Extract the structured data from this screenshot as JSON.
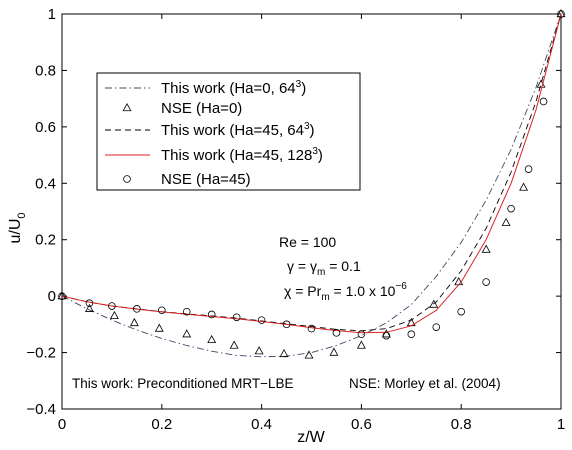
{
  "chart_data": {
    "type": "line",
    "xlabel": "z/W",
    "ylabel": "u/U",
    "ylabel_sub": "0",
    "xlim": [
      0,
      1
    ],
    "ylim": [
      -0.4,
      1
    ],
    "xticks": [
      0,
      0.2,
      0.4,
      0.6,
      0.8,
      1
    ],
    "yticks": [
      -0.4,
      -0.2,
      0,
      0.2,
      0.4,
      0.6,
      0.8,
      1
    ],
    "xtick_labels": [
      "0",
      "0.2",
      "0.4",
      "0.6",
      "0.8",
      "1"
    ],
    "ytick_labels": [
      "−0.4",
      "−0.2",
      "0",
      "0.2",
      "0.4",
      "0.6",
      "0.8",
      "1"
    ],
    "grid": false,
    "legend_position": "upper-left",
    "series": [
      {
        "name": "This work (Ha=0, 64",
        "name_sup": "3",
        "name_end": ")",
        "style": "dash-dot",
        "color": "#444466",
        "x": [
          0,
          0.05,
          0.1,
          0.15,
          0.2,
          0.25,
          0.3,
          0.35,
          0.4,
          0.45,
          0.5,
          0.55,
          0.6,
          0.65,
          0.7,
          0.75,
          0.8,
          0.85,
          0.9,
          0.95,
          1
        ],
        "y": [
          0,
          -0.045,
          -0.085,
          -0.12,
          -0.15,
          -0.175,
          -0.195,
          -0.21,
          -0.215,
          -0.213,
          -0.2,
          -0.175,
          -0.14,
          -0.095,
          -0.03,
          0.07,
          0.19,
          0.34,
          0.52,
          0.74,
          1
        ]
      },
      {
        "name": "NSE (Ha=0)",
        "style": "triangle",
        "color": "#000000",
        "x": [
          0,
          0.055,
          0.105,
          0.145,
          0.195,
          0.25,
          0.3,
          0.345,
          0.395,
          0.445,
          0.495,
          0.545,
          0.6,
          0.65,
          0.7,
          0.745,
          0.795,
          0.85,
          0.89,
          0.925,
          0.96,
          1
        ],
        "y": [
          0,
          -0.045,
          -0.07,
          -0.095,
          -0.115,
          -0.135,
          -0.155,
          -0.175,
          -0.195,
          -0.205,
          -0.21,
          -0.2,
          -0.175,
          -0.135,
          -0.095,
          -0.03,
          0.05,
          0.165,
          0.26,
          0.385,
          0.75,
          1
        ]
      },
      {
        "name": "This work (Ha=45, 64",
        "name_sup": "3",
        "name_end": ")",
        "style": "dashed",
        "color": "#000000",
        "x": [
          0,
          0.05,
          0.1,
          0.15,
          0.2,
          0.25,
          0.3,
          0.35,
          0.4,
          0.45,
          0.5,
          0.55,
          0.6,
          0.65,
          0.7,
          0.75,
          0.8,
          0.85,
          0.9,
          0.95,
          1
        ],
        "y": [
          0,
          -0.02,
          -0.035,
          -0.045,
          -0.055,
          -0.063,
          -0.07,
          -0.078,
          -0.088,
          -0.098,
          -0.108,
          -0.118,
          -0.123,
          -0.115,
          -0.085,
          -0.02,
          0.09,
          0.24,
          0.44,
          0.69,
          1
        ]
      },
      {
        "name": "This work (Ha=45, 128",
        "name_sup": "3",
        "name_end": ")",
        "style": "solid",
        "color": "#dd2222",
        "x": [
          0,
          0.05,
          0.1,
          0.15,
          0.2,
          0.25,
          0.3,
          0.35,
          0.4,
          0.45,
          0.5,
          0.55,
          0.6,
          0.65,
          0.7,
          0.75,
          0.8,
          0.85,
          0.9,
          0.95,
          1
        ],
        "y": [
          0,
          -0.02,
          -0.035,
          -0.046,
          -0.056,
          -0.064,
          -0.072,
          -0.08,
          -0.09,
          -0.1,
          -0.112,
          -0.122,
          -0.13,
          -0.128,
          -0.105,
          -0.05,
          0.05,
          0.2,
          0.4,
          0.66,
          1
        ]
      },
      {
        "name": "NSE (Ha=45)",
        "style": "circle",
        "color": "#000000",
        "x": [
          0,
          0.055,
          0.1,
          0.15,
          0.2,
          0.25,
          0.3,
          0.35,
          0.4,
          0.45,
          0.5,
          0.55,
          0.6,
          0.65,
          0.7,
          0.75,
          0.8,
          0.85,
          0.9,
          0.935,
          0.965,
          1
        ],
        "y": [
          0,
          -0.025,
          -0.035,
          -0.045,
          -0.05,
          -0.055,
          -0.065,
          -0.075,
          -0.085,
          -0.1,
          -0.115,
          -0.13,
          -0.135,
          -0.14,
          -0.135,
          -0.11,
          -0.055,
          0.05,
          0.31,
          0.45,
          0.69,
          1
        ]
      }
    ],
    "annotations": {
      "re": "Re = 100",
      "gamma": "γ = γ",
      "gamma_sub": "m",
      "gamma_end": " = 0.1",
      "chi": "χ = Pr",
      "chi_sub": "m",
      "chi_mid": " = 1.0 x 10",
      "chi_sup": "−6",
      "footer_left": "This work: Preconditioned MRT−LBE",
      "footer_right": "NSE: Morley et al. (2004)"
    }
  }
}
